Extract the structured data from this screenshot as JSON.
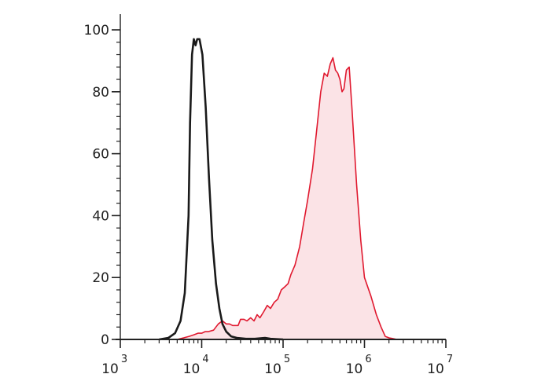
{
  "chart_data": {
    "type": "area",
    "x_scale": "log",
    "xlim": [
      1000,
      10000000
    ],
    "ylim": [
      0,
      100
    ],
    "x_ticks": [
      {
        "value": 1000,
        "base": "10",
        "exp": "3"
      },
      {
        "value": 10000,
        "base": "10",
        "exp": "4"
      },
      {
        "value": 100000,
        "base": "10",
        "exp": "5"
      },
      {
        "value": 1000000,
        "base": "10",
        "exp": "6"
      },
      {
        "value": 10000000,
        "base": "10",
        "exp": "7"
      }
    ],
    "y_ticks": [
      {
        "value": 0,
        "label": "0"
      },
      {
        "value": 20,
        "label": "20"
      },
      {
        "value": 40,
        "label": "40"
      },
      {
        "value": 60,
        "label": "60"
      },
      {
        "value": 80,
        "label": "80"
      },
      {
        "value": 100,
        "label": "100"
      }
    ],
    "grid": false,
    "series": [
      {
        "color": "#1a1a1a",
        "fill": "none",
        "x": [
          3000,
          3900,
          4700,
          5500,
          6200,
          6900,
          7200,
          7600,
          8000,
          8400,
          8800,
          9400,
          10200,
          11200,
          12300,
          13500,
          15000,
          16500,
          18000,
          20000,
          23000,
          27000,
          35000,
          45000,
          60000,
          70000,
          100000
        ],
        "y": [
          0,
          0.5,
          2,
          6,
          15,
          40,
          70,
          92,
          97,
          95,
          97,
          97,
          92,
          75,
          52,
          32,
          18,
          10,
          5,
          2.5,
          1,
          0.5,
          0.2,
          0.2,
          0.5,
          0.2,
          0
        ]
      },
      {
        "color": "#e0192f",
        "fill": "#fbe3e6",
        "x": [
          5000,
          6000,
          7000,
          8000,
          9000,
          10000,
          11000,
          12000,
          14000,
          16000,
          18000,
          20000,
          22000,
          24000,
          26000,
          28000,
          30000,
          33000,
          36000,
          40000,
          44000,
          48000,
          52000,
          58000,
          64000,
          70000,
          78000,
          86000,
          95000,
          105000,
          115000,
          125000,
          140000,
          160000,
          180000,
          200000,
          230000,
          260000,
          290000,
          320000,
          350000,
          380000,
          410000,
          440000,
          470000,
          500000,
          530000,
          560000,
          600000,
          650000,
          700000,
          800000,
          900000,
          1000000,
          1200000,
          1400000,
          1600000,
          1800000,
          2000000,
          2200000,
          2500000,
          3000000
        ],
        "y": [
          0,
          0.5,
          1,
          1.5,
          2,
          2,
          2.5,
          2.5,
          3,
          5,
          6,
          5,
          5,
          4.5,
          4.5,
          4.5,
          6.5,
          6.5,
          6,
          7,
          6,
          8,
          7,
          9,
          11,
          10,
          12,
          13,
          16,
          17,
          18,
          21,
          24,
          30,
          38,
          45,
          55,
          68,
          80,
          86,
          85,
          89,
          91,
          87,
          86,
          84,
          80,
          81,
          87,
          88,
          75,
          50,
          32,
          20,
          14,
          8,
          4,
          1,
          0.5,
          0.3,
          0,
          0
        ]
      }
    ]
  }
}
